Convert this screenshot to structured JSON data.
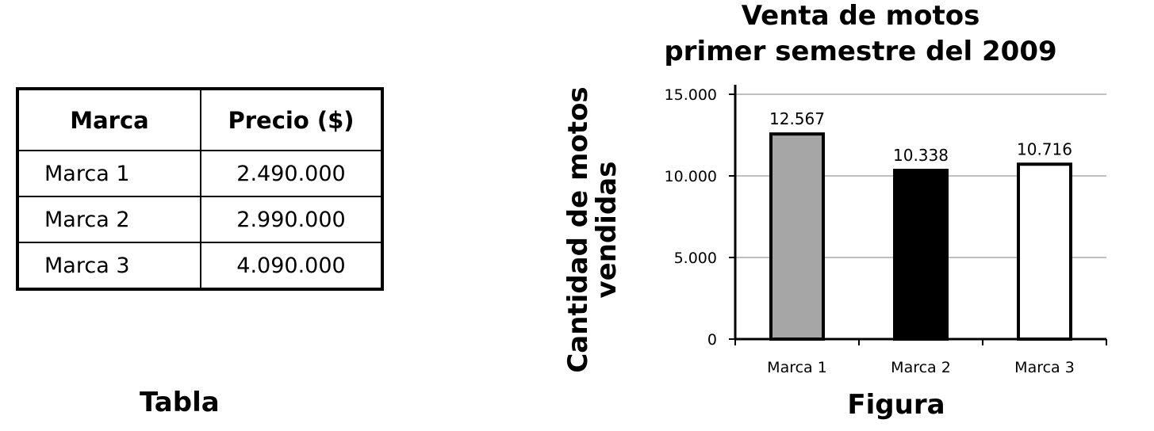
{
  "table": {
    "headers": [
      "Marca",
      "Precio ($)"
    ],
    "rows": [
      {
        "brand": "Marca 1",
        "price": "2.490.000"
      },
      {
        "brand": "Marca 2",
        "price": "2.990.000"
      },
      {
        "brand": "Marca 3",
        "price": "4.090.000"
      }
    ],
    "caption": "Tabla"
  },
  "chart_data": {
    "type": "bar",
    "title_lines": [
      "Venta de motos",
      "primer semestre del 2009"
    ],
    "ylabel_lines": [
      "Cantidad de motos",
      "vendidas"
    ],
    "xlabel": "",
    "caption": "Figura",
    "categories": [
      "Marca 1",
      "Marca 2",
      "Marca 3"
    ],
    "values": [
      12567,
      10338,
      10716
    ],
    "data_labels": [
      "12.567",
      "10.338",
      "10.716"
    ],
    "bar_colors": [
      "#a6a6a6",
      "#000000",
      "#ffffff"
    ],
    "ylim": [
      0,
      15000
    ],
    "yticks": [
      0,
      5000,
      10000,
      15000
    ],
    "ytick_labels": [
      "0",
      "5.000",
      "10.000",
      "15.000"
    ],
    "grid": true,
    "gridline_color": "#bfbfbf"
  }
}
